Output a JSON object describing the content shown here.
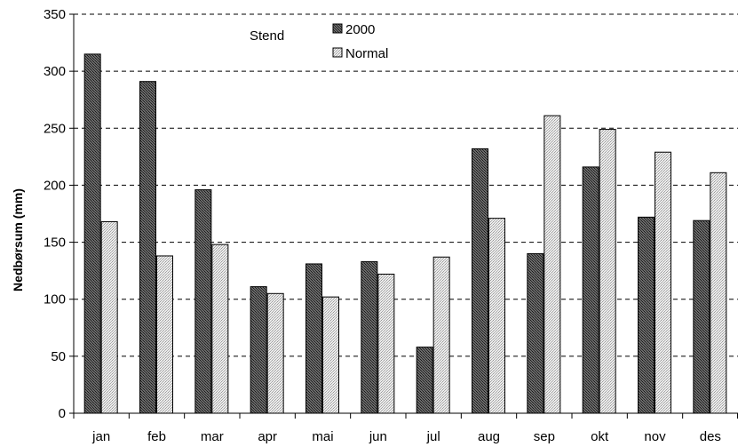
{
  "chart_data": {
    "type": "bar",
    "title": "",
    "xlabel": "",
    "ylabel": "Nedbørsum (mm)",
    "ylim": [
      0,
      350
    ],
    "yticks": [
      0,
      50,
      100,
      150,
      200,
      250,
      300,
      350
    ],
    "grid": "horizontal dashed",
    "legend_title": "Stend",
    "legend_position": "top-center",
    "categories": [
      "jan",
      "feb",
      "mar",
      "apr",
      "mai",
      "jun",
      "jul",
      "aug",
      "sep",
      "okt",
      "nov",
      "des"
    ],
    "series": [
      {
        "name": "2000",
        "values": [
          315,
          291,
          196,
          111,
          131,
          133,
          58,
          232,
          140,
          216,
          172,
          169
        ],
        "color": "#4a4a4a"
      },
      {
        "name": "Normal",
        "values": [
          168,
          138,
          148,
          105,
          102,
          122,
          137,
          171,
          261,
          249,
          229,
          211
        ],
        "color": "#d9d9d9"
      }
    ]
  }
}
